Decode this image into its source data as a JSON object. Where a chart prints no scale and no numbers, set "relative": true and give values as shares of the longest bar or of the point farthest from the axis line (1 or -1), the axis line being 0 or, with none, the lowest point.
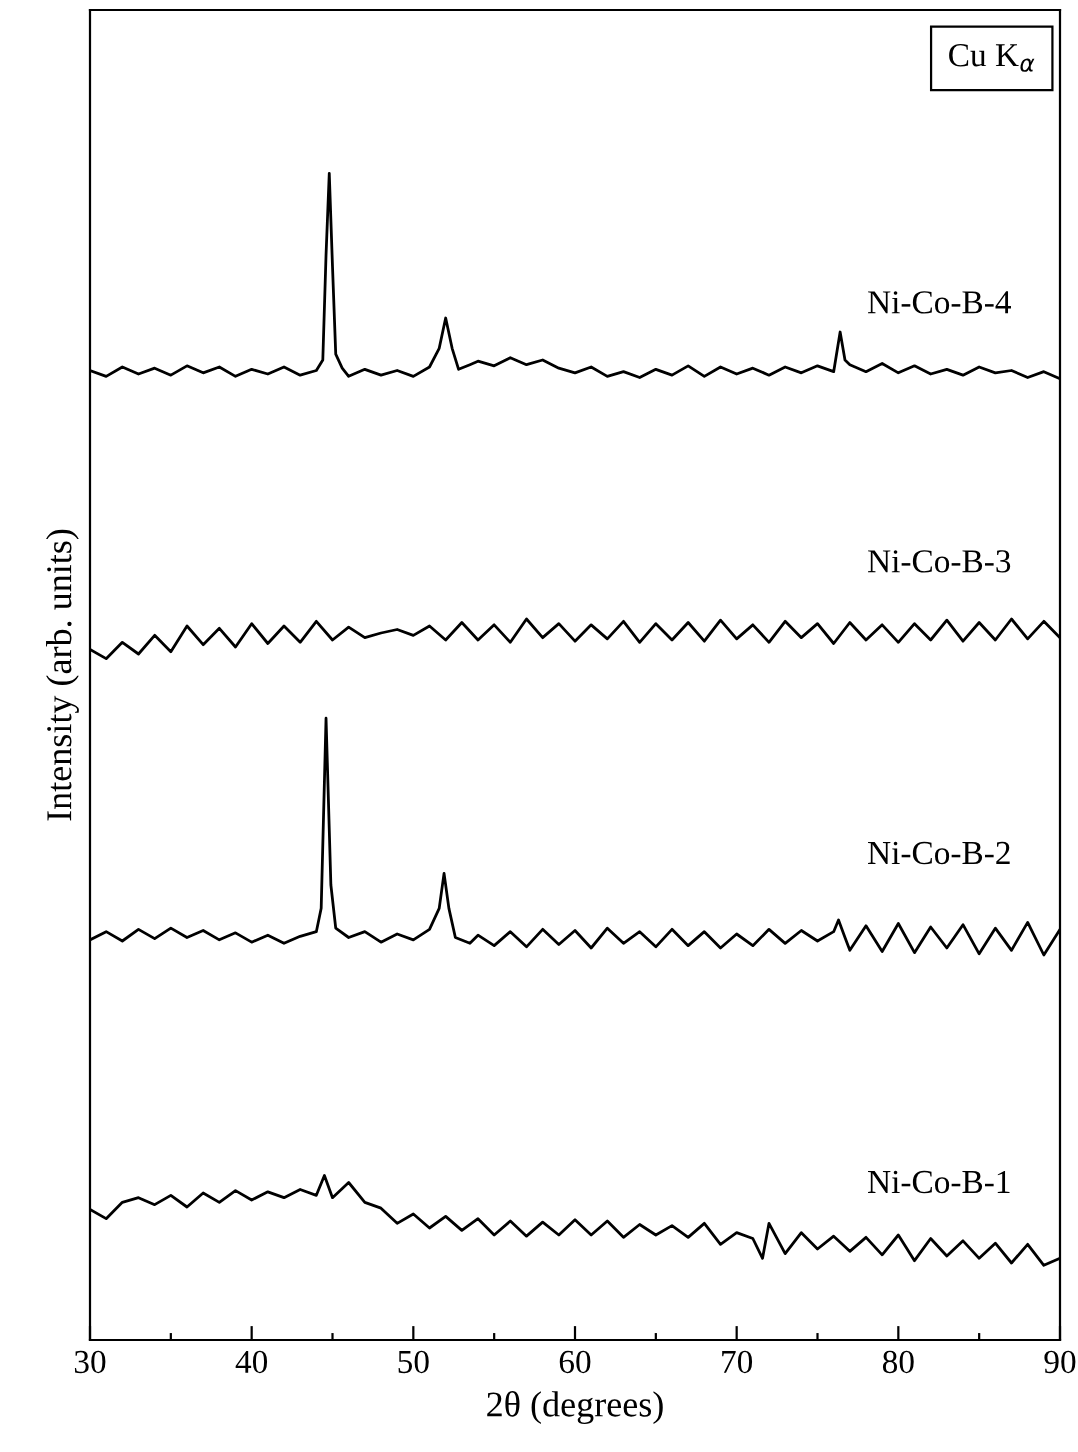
{
  "chart_data": {
    "type": "line",
    "relative": true,
    "xlabel": "2θ (degrees)",
    "ylabel": "Intensity (arb. units)",
    "annotations": [
      "Cu K$_{α}$"
    ],
    "xlim": [
      30,
      90
    ],
    "xticks": [
      30,
      {
        "value": 35,
        "label": null
      },
      40,
      {
        "value": 45,
        "label": null
      },
      50,
      {
        "value": 55,
        "label": null
      },
      60,
      {
        "value": 65,
        "label": null
      },
      70,
      {
        "value": 75,
        "label": null
      },
      80,
      {
        "value": 85,
        "label": null
      },
      90
    ],
    "series": [
      {
        "name": "Ni-Co-B-4",
        "color": "#000000",
        "x": [
          30,
          31,
          32,
          33,
          34,
          35,
          36,
          37,
          38,
          39,
          40,
          41,
          42,
          43,
          44,
          44.4,
          44.6,
          44.8,
          45.0,
          45.2,
          45.6,
          46,
          47,
          48,
          49,
          50,
          51,
          51.6,
          52.0,
          52.4,
          52.8,
          53.5,
          54,
          55,
          56,
          57,
          58,
          59,
          60,
          61,
          62,
          63,
          64,
          65,
          66,
          67,
          68,
          69,
          70,
          71,
          72,
          73,
          74,
          75,
          76,
          76.4,
          76.7,
          77,
          78,
          79,
          80,
          81,
          82,
          83,
          84,
          85,
          86,
          87,
          88,
          89,
          90
        ],
        "values": [
          0.831,
          0.826,
          0.834,
          0.828,
          0.833,
          0.827,
          0.835,
          0.829,
          0.834,
          0.826,
          0.832,
          0.828,
          0.834,
          0.827,
          0.831,
          0.84,
          0.93,
          1.0,
          0.92,
          0.845,
          0.833,
          0.826,
          0.832,
          0.827,
          0.831,
          0.826,
          0.834,
          0.85,
          0.876,
          0.85,
          0.832,
          0.836,
          0.839,
          0.835,
          0.842,
          0.836,
          0.84,
          0.833,
          0.829,
          0.834,
          0.826,
          0.83,
          0.825,
          0.832,
          0.827,
          0.835,
          0.826,
          0.834,
          0.828,
          0.833,
          0.827,
          0.834,
          0.829,
          0.835,
          0.83,
          0.864,
          0.84,
          0.836,
          0.83,
          0.837,
          0.829,
          0.835,
          0.828,
          0.832,
          0.827,
          0.834,
          0.829,
          0.831,
          0.825,
          0.83,
          0.824
        ]
      },
      {
        "name": "Ni-Co-B-3",
        "color": "#000000",
        "x": [
          30,
          31,
          32,
          33,
          34,
          35,
          36,
          37,
          38,
          39,
          40,
          41,
          42,
          43,
          44,
          45,
          46,
          47,
          48,
          49,
          50,
          51,
          52,
          53,
          54,
          55,
          56,
          57,
          58,
          59,
          60,
          61,
          62,
          63,
          64,
          65,
          66,
          67,
          68,
          69,
          70,
          71,
          72,
          73,
          74,
          75,
          76,
          77,
          78,
          79,
          80,
          81,
          82,
          83,
          84,
          85,
          86,
          87,
          88,
          89,
          90
        ],
        "values": [
          0.592,
          0.584,
          0.598,
          0.588,
          0.604,
          0.59,
          0.612,
          0.596,
          0.61,
          0.594,
          0.614,
          0.597,
          0.612,
          0.598,
          0.616,
          0.6,
          0.611,
          0.602,
          0.606,
          0.609,
          0.604,
          0.612,
          0.6,
          0.615,
          0.6,
          0.613,
          0.598,
          0.618,
          0.602,
          0.614,
          0.599,
          0.613,
          0.601,
          0.616,
          0.598,
          0.614,
          0.6,
          0.615,
          0.599,
          0.617,
          0.601,
          0.613,
          0.598,
          0.616,
          0.602,
          0.614,
          0.597,
          0.615,
          0.6,
          0.613,
          0.598,
          0.614,
          0.6,
          0.617,
          0.599,
          0.615,
          0.6,
          0.618,
          0.601,
          0.616,
          0.602
        ]
      },
      {
        "name": "Ni-Co-B-2",
        "color": "#000000",
        "x": [
          30,
          31,
          32,
          33,
          34,
          35,
          36,
          37,
          38,
          39,
          40,
          41,
          42,
          43,
          44,
          44.3,
          44.6,
          44.9,
          45.2,
          46,
          47,
          48,
          49,
          50,
          51,
          51.6,
          51.9,
          52.2,
          52.6,
          53.5,
          54,
          55,
          56,
          57,
          58,
          59,
          60,
          61,
          62,
          63,
          64,
          65,
          66,
          67,
          68,
          69,
          70,
          71,
          72,
          73,
          74,
          75,
          76,
          76.3,
          76.7,
          77,
          78,
          79,
          80,
          81,
          82,
          83,
          84,
          85,
          86,
          87,
          88,
          89,
          90
        ],
        "values": [
          0.343,
          0.35,
          0.342,
          0.352,
          0.344,
          0.353,
          0.345,
          0.351,
          0.343,
          0.349,
          0.341,
          0.347,
          0.34,
          0.346,
          0.35,
          0.37,
          0.533,
          0.39,
          0.353,
          0.345,
          0.35,
          0.341,
          0.348,
          0.343,
          0.352,
          0.37,
          0.4,
          0.37,
          0.345,
          0.34,
          0.347,
          0.338,
          0.35,
          0.337,
          0.352,
          0.339,
          0.351,
          0.336,
          0.353,
          0.34,
          0.35,
          0.337,
          0.352,
          0.338,
          0.35,
          0.336,
          0.348,
          0.338,
          0.352,
          0.34,
          0.351,
          0.342,
          0.35,
          0.36,
          0.345,
          0.334,
          0.355,
          0.333,
          0.357,
          0.332,
          0.354,
          0.336,
          0.356,
          0.331,
          0.353,
          0.334,
          0.358,
          0.33,
          0.352
        ]
      },
      {
        "name": "Ni-Co-B-1",
        "color": "#000000",
        "x": [
          30,
          31,
          32,
          33,
          34,
          35,
          36,
          37,
          38,
          39,
          40,
          41,
          42,
          43,
          44,
          44.5,
          45,
          46,
          47,
          48,
          49,
          50,
          51,
          52,
          53,
          54,
          55,
          56,
          57,
          58,
          59,
          60,
          61,
          62,
          63,
          64,
          65,
          66,
          67,
          68,
          69,
          70,
          71,
          71.6,
          72,
          73,
          74,
          75,
          76,
          77,
          78,
          79,
          80,
          81,
          82,
          83,
          84,
          85,
          86,
          87,
          88,
          89,
          90
        ],
        "values": [
          0.112,
          0.104,
          0.118,
          0.122,
          0.116,
          0.124,
          0.114,
          0.126,
          0.118,
          0.128,
          0.12,
          0.127,
          0.122,
          0.129,
          0.124,
          0.141,
          0.122,
          0.135,
          0.118,
          0.113,
          0.1,
          0.108,
          0.096,
          0.106,
          0.094,
          0.104,
          0.09,
          0.102,
          0.089,
          0.101,
          0.09,
          0.103,
          0.09,
          0.102,
          0.088,
          0.099,
          0.09,
          0.098,
          0.088,
          0.1,
          0.082,
          0.092,
          0.087,
          0.07,
          0.1,
          0.074,
          0.092,
          0.078,
          0.089,
          0.076,
          0.088,
          0.073,
          0.09,
          0.068,
          0.087,
          0.072,
          0.085,
          0.07,
          0.083,
          0.066,
          0.082,
          0.064,
          0.07
        ]
      }
    ]
  }
}
